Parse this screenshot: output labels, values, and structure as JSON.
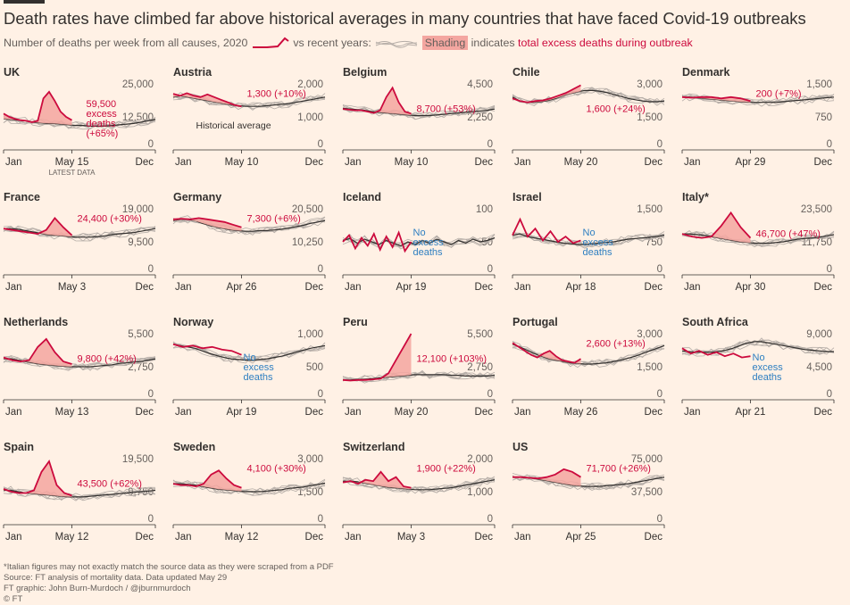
{
  "title": "Death rates have climbed far above historical averages in many countries that have faced Covid-19 outbreaks",
  "subtitle": {
    "prefix": "Number of deaths per week from all causes,",
    "year": "2020",
    "vs": "vs recent years:",
    "shading": "Shading",
    "indicates": "indicates",
    "excess": "total excess deaths during outbreak"
  },
  "colors": {
    "background": "#fff1e5",
    "line2020": "#cc0a3d",
    "historical": "#b5ada7",
    "average": "#33302e",
    "shading": "#f4a6a0",
    "noexcess": "#2e7fc1"
  },
  "chart_data": [
    {
      "type": "line",
      "country": "UK",
      "yticks": [
        "25,000",
        "12,500",
        "0"
      ],
      "ylim": [
        0,
        25000
      ],
      "x_ticks": [
        "Jan",
        "May 15",
        "Dec"
      ],
      "latest_label": "LATEST DATA",
      "annotation": "59,500 excess deaths (+65%)",
      "baseline": [
        0.47,
        0.46,
        0.45,
        0.44,
        0.42,
        0.41,
        0.4,
        0.4,
        0.39,
        0.38,
        0.37,
        0.37,
        0.36,
        0.36,
        0.36,
        0.37,
        0.38,
        0.39,
        0.4,
        0.42,
        0.44,
        0.46
      ],
      "series2020": [
        0.55,
        0.5,
        0.47,
        0.45,
        0.44,
        0.42,
        0.44,
        0.78,
        0.88,
        0.74,
        0.58,
        0.5,
        0.45
      ],
      "peak": 0.88
    },
    {
      "type": "line",
      "country": "Austria",
      "yticks": [
        "2,000",
        "1,000",
        "0"
      ],
      "ylim": [
        0,
        2000
      ],
      "x_ticks": [
        "Jan",
        "May 10",
        "Dec"
      ],
      "annotation": "1,300 (+10%)",
      "avg_label": "Historical average",
      "baseline": [
        0.8,
        0.82,
        0.8,
        0.78,
        0.76,
        0.74,
        0.72,
        0.7,
        0.68,
        0.67,
        0.66,
        0.66,
        0.66,
        0.67,
        0.68,
        0.69,
        0.7,
        0.72,
        0.74,
        0.76,
        0.78,
        0.8
      ],
      "series2020": [
        0.85,
        0.82,
        0.86,
        0.82,
        0.8,
        0.84,
        0.8,
        0.76,
        0.72,
        0.68,
        0.66
      ],
      "peak": 0.86
    },
    {
      "type": "line",
      "country": "Belgium",
      "yticks": [
        "4,500",
        "2,250",
        "0"
      ],
      "ylim": [
        0,
        4500
      ],
      "x_ticks": [
        "Jan",
        "May 10",
        "Dec"
      ],
      "annotation": "8,700 (+53%)",
      "baseline": [
        0.63,
        0.62,
        0.61,
        0.6,
        0.58,
        0.57,
        0.56,
        0.55,
        0.54,
        0.53,
        0.52,
        0.52,
        0.52,
        0.53,
        0.54,
        0.55,
        0.56,
        0.57,
        0.58,
        0.59,
        0.6,
        0.62
      ],
      "series2020": [
        0.62,
        0.61,
        0.6,
        0.6,
        0.58,
        0.56,
        0.6,
        0.8,
        0.94,
        0.72,
        0.58,
        0.55
      ],
      "peak": 0.94
    },
    {
      "type": "line",
      "country": "Chile",
      "yticks": [
        "3,000",
        "1,500",
        "0"
      ],
      "ylim": [
        0,
        3000
      ],
      "x_ticks": [
        "Jan",
        "May 20",
        "Dec"
      ],
      "annotation": "1,600 (+24%)",
      "baseline": [
        0.8,
        0.74,
        0.72,
        0.72,
        0.73,
        0.75,
        0.78,
        0.82,
        0.85,
        0.88,
        0.9,
        0.9,
        0.89,
        0.87,
        0.84,
        0.81,
        0.78,
        0.76,
        0.74,
        0.73,
        0.73,
        0.74
      ],
      "series2020": [
        0.78,
        0.74,
        0.72,
        0.74,
        0.75,
        0.78,
        0.82,
        0.86,
        0.92,
        0.98
      ],
      "peak": 0.98
    },
    {
      "type": "line",
      "country": "Denmark",
      "yticks": [
        "1,500",
        "750",
        "0"
      ],
      "ylim": [
        0,
        1500
      ],
      "x_ticks": [
        "Jan",
        "Apr 29",
        "Dec"
      ],
      "annotation": "200 (+7%)",
      "baseline": [
        0.8,
        0.8,
        0.79,
        0.78,
        0.77,
        0.76,
        0.75,
        0.74,
        0.73,
        0.72,
        0.72,
        0.72,
        0.72,
        0.72,
        0.73,
        0.74,
        0.75,
        0.76,
        0.77,
        0.78,
        0.79,
        0.8
      ],
      "series2020": [
        0.8,
        0.79,
        0.8,
        0.8,
        0.78,
        0.8,
        0.78,
        0.74
      ],
      "peak": 0.8
    },
    {
      "type": "line",
      "country": "France",
      "yticks": [
        "19,000",
        "9,500",
        "0"
      ],
      "ylim": [
        0,
        19000
      ],
      "x_ticks": [
        "Jan",
        "May 3",
        "Dec"
      ],
      "annotation": "24,400 (+30%)",
      "baseline": [
        0.7,
        0.7,
        0.69,
        0.67,
        0.65,
        0.63,
        0.61,
        0.6,
        0.59,
        0.58,
        0.57,
        0.57,
        0.57,
        0.58,
        0.59,
        0.61,
        0.62,
        0.63,
        0.64,
        0.66,
        0.68,
        0.7
      ],
      "series2020": [
        0.7,
        0.68,
        0.66,
        0.64,
        0.62,
        0.68,
        0.86,
        0.72,
        0.6
      ],
      "peak": 0.86
    },
    {
      "type": "line",
      "country": "Germany",
      "yticks": [
        "20,500",
        "10,250",
        "0"
      ],
      "ylim": [
        0,
        20500
      ],
      "x_ticks": [
        "Jan",
        "Apr 26",
        "Dec"
      ],
      "annotation": "7,300 (+6%)",
      "baseline": [
        0.82,
        0.84,
        0.84,
        0.82,
        0.78,
        0.75,
        0.72,
        0.7,
        0.68,
        0.67,
        0.66,
        0.66,
        0.67,
        0.67,
        0.68,
        0.69,
        0.71,
        0.73,
        0.75,
        0.78,
        0.8,
        0.82
      ],
      "series2020": [
        0.84,
        0.85,
        0.84,
        0.86,
        0.84,
        0.82,
        0.8,
        0.76,
        0.72
      ],
      "peak": 0.86
    },
    {
      "type": "line",
      "country": "Iceland",
      "yticks": [
        "100",
        "50",
        "0"
      ],
      "ylim": [
        0,
        100
      ],
      "x_ticks": [
        "Jan",
        "Apr 19",
        "Dec"
      ],
      "annotation": "No excess deaths",
      "noexcess": true,
      "baseline": [
        0.52,
        0.55,
        0.48,
        0.54,
        0.5,
        0.46,
        0.52,
        0.48,
        0.44,
        0.5,
        0.46,
        0.52,
        0.48,
        0.54,
        0.5,
        0.46,
        0.52,
        0.48,
        0.54,
        0.5,
        0.52,
        0.56
      ],
      "series2020": [
        0.5,
        0.6,
        0.4,
        0.56,
        0.44,
        0.62,
        0.38,
        0.58,
        0.42,
        0.64,
        0.36,
        0.5
      ],
      "peak": 0.64
    },
    {
      "type": "line",
      "country": "Israel",
      "yticks": [
        "1,500",
        "750",
        "0"
      ],
      "ylim": [
        0,
        1500
      ],
      "x_ticks": [
        "Jan",
        "Apr 18",
        "Dec"
      ],
      "annotation": "No excess deaths",
      "noexcess": true,
      "baseline": [
        0.6,
        0.62,
        0.58,
        0.56,
        0.54,
        0.52,
        0.5,
        0.48,
        0.47,
        0.46,
        0.46,
        0.47,
        0.48,
        0.49,
        0.5,
        0.52,
        0.54,
        0.55,
        0.56,
        0.57,
        0.58,
        0.6
      ],
      "series2020": [
        0.6,
        0.84,
        0.58,
        0.7,
        0.52,
        0.66,
        0.5,
        0.58,
        0.48,
        0.52
      ],
      "peak": 0.84
    },
    {
      "type": "line",
      "country": "Italy*",
      "yticks": [
        "23,500",
        "11,750",
        "0"
      ],
      "ylim": [
        0,
        23500
      ],
      "x_ticks": [
        "Jan",
        "Apr 30",
        "Dec"
      ],
      "annotation": "46,700 (+47%)",
      "baseline": [
        0.62,
        0.62,
        0.61,
        0.6,
        0.58,
        0.56,
        0.54,
        0.52,
        0.5,
        0.49,
        0.48,
        0.48,
        0.48,
        0.49,
        0.5,
        0.52,
        0.54,
        0.55,
        0.56,
        0.57,
        0.59,
        0.61
      ],
      "series2020": [
        0.62,
        0.58,
        0.56,
        0.58,
        0.74,
        0.94,
        0.72,
        0.56
      ],
      "peak": 0.94
    },
    {
      "type": "line",
      "country": "Netherlands",
      "yticks": [
        "5,500",
        "2,750",
        "0"
      ],
      "ylim": [
        0,
        5500
      ],
      "x_ticks": [
        "Jan",
        "May 13",
        "Dec"
      ],
      "annotation": "9,800 (+42%)",
      "baseline": [
        0.62,
        0.62,
        0.6,
        0.58,
        0.56,
        0.54,
        0.53,
        0.52,
        0.51,
        0.5,
        0.5,
        0.5,
        0.5,
        0.51,
        0.52,
        0.53,
        0.55,
        0.56,
        0.57,
        0.58,
        0.6,
        0.62
      ],
      "series2020": [
        0.64,
        0.6,
        0.58,
        0.6,
        0.8,
        0.92,
        0.72,
        0.58,
        0.54
      ],
      "peak": 0.92
    },
    {
      "type": "line",
      "country": "Norway",
      "yticks": [
        "1,000",
        "500",
        "0"
      ],
      "ylim": [
        0,
        1000
      ],
      "x_ticks": [
        "Jan",
        "Apr 19",
        "Dec"
      ],
      "annotation": "No excess deaths",
      "noexcess": true,
      "baseline": [
        0.84,
        0.82,
        0.8,
        0.78,
        0.74,
        0.7,
        0.67,
        0.64,
        0.62,
        0.61,
        0.6,
        0.6,
        0.61,
        0.62,
        0.64,
        0.66,
        0.69,
        0.72,
        0.75,
        0.78,
        0.8,
        0.82
      ],
      "series2020": [
        0.84,
        0.8,
        0.82,
        0.78,
        0.8,
        0.76,
        0.74,
        0.68
      ],
      "peak": 0.84
    },
    {
      "type": "line",
      "country": "Peru",
      "yticks": [
        "5,500",
        "2,750",
        "0"
      ],
      "ylim": [
        0,
        5500
      ],
      "x_ticks": [
        "Jan",
        "May 20",
        "Dec"
      ],
      "annotation": "12,100 (+103%)",
      "baseline": [
        0.3,
        0.3,
        0.31,
        0.31,
        0.32,
        0.33,
        0.34,
        0.35,
        0.36,
        0.37,
        0.38,
        0.38,
        0.38,
        0.38,
        0.38,
        0.37,
        0.37,
        0.36,
        0.36,
        0.36,
        0.36,
        0.37
      ],
      "series2020": [
        0.3,
        0.29,
        0.3,
        0.3,
        0.31,
        0.32,
        0.4,
        0.6,
        0.8,
        1.0
      ],
      "peak": 1.0
    },
    {
      "type": "line",
      "country": "Portugal",
      "yticks": [
        "3,000",
        "1,500",
        "0"
      ],
      "ylim": [
        0,
        3000
      ],
      "x_ticks": [
        "Jan",
        "May 26",
        "Dec"
      ],
      "annotation": "2,600 (+13%)",
      "baseline": [
        0.84,
        0.8,
        0.75,
        0.7,
        0.66,
        0.62,
        0.6,
        0.58,
        0.56,
        0.55,
        0.54,
        0.54,
        0.55,
        0.56,
        0.58,
        0.6,
        0.63,
        0.66,
        0.7,
        0.74,
        0.78,
        0.82
      ],
      "series2020": [
        0.86,
        0.8,
        0.74,
        0.68,
        0.64,
        0.7,
        0.74,
        0.66,
        0.6,
        0.58,
        0.56,
        0.62
      ],
      "peak": 0.86
    },
    {
      "type": "line",
      "country": "South Africa",
      "yticks": [
        "9,000",
        "4,500",
        "0"
      ],
      "ylim": [
        0,
        9000
      ],
      "x_ticks": [
        "Jan",
        "Apr 21",
        "Dec"
      ],
      "annotation": "No excess deaths",
      "noexcess": true,
      "baseline": [
        0.74,
        0.73,
        0.72,
        0.72,
        0.72,
        0.73,
        0.75,
        0.78,
        0.82,
        0.86,
        0.88,
        0.88,
        0.86,
        0.84,
        0.82,
        0.8,
        0.78,
        0.76,
        0.75,
        0.74,
        0.73,
        0.73
      ],
      "series2020": [
        0.78,
        0.7,
        0.74,
        0.68,
        0.72,
        0.66,
        0.7,
        0.64,
        0.66
      ],
      "peak": 0.78
    },
    {
      "type": "line",
      "country": "Spain",
      "yticks": [
        "19,500",
        "9,750",
        "0"
      ],
      "ylim": [
        0,
        19500
      ],
      "x_ticks": [
        "Jan",
        "May 12",
        "Dec"
      ],
      "annotation": "43,500 (+62%)",
      "baseline": [
        0.52,
        0.52,
        0.5,
        0.48,
        0.47,
        0.46,
        0.45,
        0.44,
        0.43,
        0.42,
        0.42,
        0.42,
        0.43,
        0.44,
        0.45,
        0.46,
        0.47,
        0.48,
        0.49,
        0.5,
        0.51,
        0.52
      ],
      "series2020": [
        0.54,
        0.5,
        0.48,
        0.48,
        0.52,
        0.8,
        0.96,
        0.6,
        0.48,
        0.44
      ],
      "peak": 0.96
    },
    {
      "type": "line",
      "country": "Sweden",
      "yticks": [
        "3,000",
        "1,500",
        "0"
      ],
      "ylim": [
        0,
        3000
      ],
      "x_ticks": [
        "Jan",
        "May 12",
        "Dec"
      ],
      "annotation": "4,100 (+30%)",
      "baseline": [
        0.62,
        0.62,
        0.61,
        0.6,
        0.58,
        0.56,
        0.54,
        0.53,
        0.52,
        0.51,
        0.5,
        0.5,
        0.5,
        0.51,
        0.52,
        0.53,
        0.55,
        0.56,
        0.57,
        0.59,
        0.61,
        0.63
      ],
      "series2020": [
        0.62,
        0.6,
        0.6,
        0.58,
        0.62,
        0.76,
        0.82,
        0.7,
        0.6,
        0.56
      ],
      "peak": 0.82
    },
    {
      "type": "line",
      "country": "Switzerland",
      "yticks": [
        "2,000",
        "1,000",
        "0"
      ],
      "ylim": [
        0,
        2000
      ],
      "x_ticks": [
        "Jan",
        "May 3",
        "Dec"
      ],
      "annotation": "1,900 (+22%)",
      "baseline": [
        0.66,
        0.66,
        0.65,
        0.63,
        0.61,
        0.59,
        0.57,
        0.56,
        0.55,
        0.54,
        0.53,
        0.53,
        0.53,
        0.54,
        0.55,
        0.56,
        0.58,
        0.6,
        0.62,
        0.64,
        0.66,
        0.68
      ],
      "series2020": [
        0.64,
        0.66,
        0.62,
        0.68,
        0.66,
        0.8,
        0.66,
        0.72,
        0.58,
        0.56
      ],
      "peak": 0.8
    },
    {
      "type": "line",
      "country": "US",
      "yticks": [
        "75,000",
        "37,500",
        "0"
      ],
      "ylim": [
        0,
        75000
      ],
      "x_ticks": [
        "Jan",
        "Apr 25",
        "Dec"
      ],
      "annotation": "71,700 (+26%)",
      "baseline": [
        0.72,
        0.72,
        0.71,
        0.7,
        0.68,
        0.66,
        0.64,
        0.62,
        0.6,
        0.59,
        0.58,
        0.58,
        0.58,
        0.59,
        0.6,
        0.61,
        0.62,
        0.64,
        0.66,
        0.68,
        0.7,
        0.72
      ],
      "series2020": [
        0.72,
        0.72,
        0.71,
        0.7,
        0.72,
        0.76,
        0.84,
        0.8,
        0.72
      ],
      "peak": 0.84
    }
  ],
  "footnotes": [
    "*Italian figures may not exactly match the source data as they were scraped from a PDF",
    "Source: FT analysis of mortality data. Data updated May 29",
    "FT graphic: John Burn-Murdoch / @jburnmurdoch",
    "© FT"
  ]
}
